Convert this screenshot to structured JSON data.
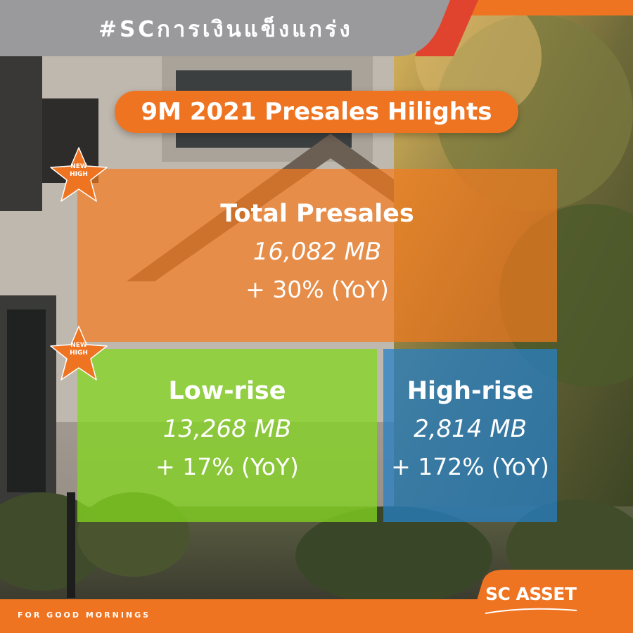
{
  "header": {
    "hashtag": "#SCการเงินแข็งแกร่ง"
  },
  "title": "9M 2021 Presales Hilights",
  "badges": [
    {
      "line1": "NEW",
      "line2": "HIGH"
    },
    {
      "line1": "NEW",
      "line2": "HIGH"
    }
  ],
  "cards": {
    "total": {
      "heading": "Total Presales",
      "value": "16,082 MB",
      "growth": "+ 30% (YoY)"
    },
    "low_rise": {
      "heading": "Low-rise",
      "value": "13,268 MB",
      "growth": "+ 17% (YoY)"
    },
    "high_rise": {
      "heading": "High-rise",
      "value": "2,814 MB",
      "growth": "+ 172% (YoY)"
    }
  },
  "footer": {
    "tagline": "FOR GOOD MORNINGS",
    "logo": "SC ASSET"
  },
  "colors": {
    "brand_orange": "#ef7422",
    "banner_gray": "#9a9a9c",
    "accent_red": "#e0432e",
    "low_rise_green": "#84d620",
    "high_rise_blue": "#2680c8"
  }
}
